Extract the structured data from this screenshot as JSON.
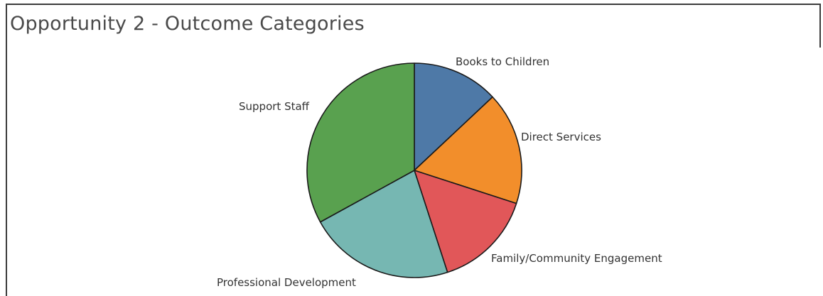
{
  "title": "Opportunity 2 - Outcome Categories",
  "chart_data": {
    "type": "pie",
    "title": "Opportunity 2 - Outcome Categories",
    "slices": [
      {
        "label": "Books to Children",
        "value": 13,
        "color": "#4e79a7"
      },
      {
        "label": "Direct Services",
        "value": 17,
        "color": "#f28e2b"
      },
      {
        "label": "Family/Community Engagement",
        "value": 15,
        "color": "#e15759"
      },
      {
        "label": "Professional Development",
        "value": 22,
        "color": "#76b7b2"
      },
      {
        "label": "Support Staff",
        "value": 33,
        "color": "#59a14f"
      }
    ],
    "legend": "none"
  }
}
